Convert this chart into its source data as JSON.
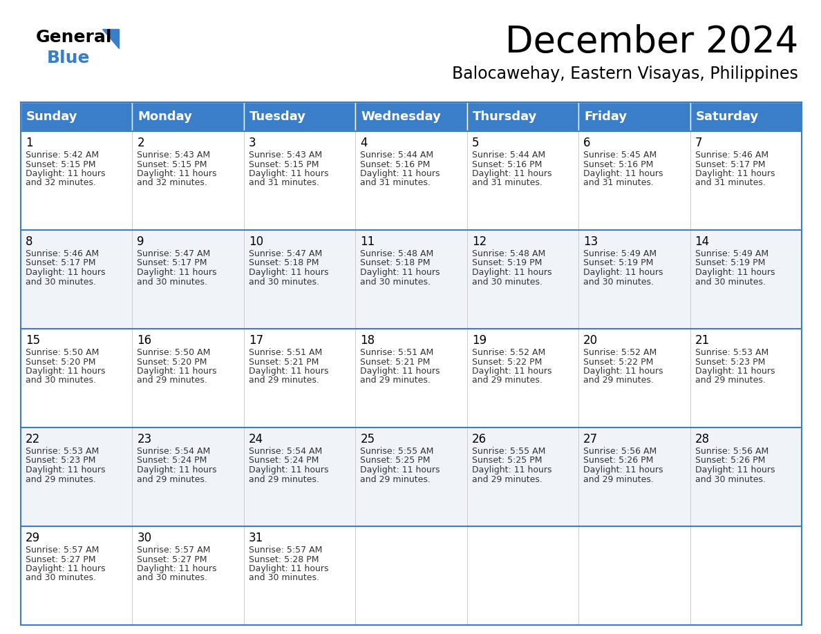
{
  "title": "December 2024",
  "subtitle": "Balocawehay, Eastern Visayas, Philippines",
  "header_color": "#3A7DC9",
  "header_text_color": "#FFFFFF",
  "cell_bg_alt": "#F0F4F8",
  "cell_bg_norm": "#FFFFFF",
  "text_color": "#333333",
  "day_names": [
    "Sunday",
    "Monday",
    "Tuesday",
    "Wednesday",
    "Thursday",
    "Friday",
    "Saturday"
  ],
  "title_fontsize": 38,
  "subtitle_fontsize": 17,
  "header_fontsize": 13,
  "day_num_fontsize": 12,
  "cell_fontsize": 9,
  "days": [
    {
      "day": 1,
      "col": 0,
      "row": 0,
      "sunrise": "5:42 AM",
      "sunset": "5:15 PM",
      "dl1": "Daylight: 11 hours",
      "dl2": "and 32 minutes."
    },
    {
      "day": 2,
      "col": 1,
      "row": 0,
      "sunrise": "5:43 AM",
      "sunset": "5:15 PM",
      "dl1": "Daylight: 11 hours",
      "dl2": "and 32 minutes."
    },
    {
      "day": 3,
      "col": 2,
      "row": 0,
      "sunrise": "5:43 AM",
      "sunset": "5:15 PM",
      "dl1": "Daylight: 11 hours",
      "dl2": "and 31 minutes."
    },
    {
      "day": 4,
      "col": 3,
      "row": 0,
      "sunrise": "5:44 AM",
      "sunset": "5:16 PM",
      "dl1": "Daylight: 11 hours",
      "dl2": "and 31 minutes."
    },
    {
      "day": 5,
      "col": 4,
      "row": 0,
      "sunrise": "5:44 AM",
      "sunset": "5:16 PM",
      "dl1": "Daylight: 11 hours",
      "dl2": "and 31 minutes."
    },
    {
      "day": 6,
      "col": 5,
      "row": 0,
      "sunrise": "5:45 AM",
      "sunset": "5:16 PM",
      "dl1": "Daylight: 11 hours",
      "dl2": "and 31 minutes."
    },
    {
      "day": 7,
      "col": 6,
      "row": 0,
      "sunrise": "5:46 AM",
      "sunset": "5:17 PM",
      "dl1": "Daylight: 11 hours",
      "dl2": "and 31 minutes."
    },
    {
      "day": 8,
      "col": 0,
      "row": 1,
      "sunrise": "5:46 AM",
      "sunset": "5:17 PM",
      "dl1": "Daylight: 11 hours",
      "dl2": "and 30 minutes."
    },
    {
      "day": 9,
      "col": 1,
      "row": 1,
      "sunrise": "5:47 AM",
      "sunset": "5:17 PM",
      "dl1": "Daylight: 11 hours",
      "dl2": "and 30 minutes."
    },
    {
      "day": 10,
      "col": 2,
      "row": 1,
      "sunrise": "5:47 AM",
      "sunset": "5:18 PM",
      "dl1": "Daylight: 11 hours",
      "dl2": "and 30 minutes."
    },
    {
      "day": 11,
      "col": 3,
      "row": 1,
      "sunrise": "5:48 AM",
      "sunset": "5:18 PM",
      "dl1": "Daylight: 11 hours",
      "dl2": "and 30 minutes."
    },
    {
      "day": 12,
      "col": 4,
      "row": 1,
      "sunrise": "5:48 AM",
      "sunset": "5:19 PM",
      "dl1": "Daylight: 11 hours",
      "dl2": "and 30 minutes."
    },
    {
      "day": 13,
      "col": 5,
      "row": 1,
      "sunrise": "5:49 AM",
      "sunset": "5:19 PM",
      "dl1": "Daylight: 11 hours",
      "dl2": "and 30 minutes."
    },
    {
      "day": 14,
      "col": 6,
      "row": 1,
      "sunrise": "5:49 AM",
      "sunset": "5:19 PM",
      "dl1": "Daylight: 11 hours",
      "dl2": "and 30 minutes."
    },
    {
      "day": 15,
      "col": 0,
      "row": 2,
      "sunrise": "5:50 AM",
      "sunset": "5:20 PM",
      "dl1": "Daylight: 11 hours",
      "dl2": "and 30 minutes."
    },
    {
      "day": 16,
      "col": 1,
      "row": 2,
      "sunrise": "5:50 AM",
      "sunset": "5:20 PM",
      "dl1": "Daylight: 11 hours",
      "dl2": "and 29 minutes."
    },
    {
      "day": 17,
      "col": 2,
      "row": 2,
      "sunrise": "5:51 AM",
      "sunset": "5:21 PM",
      "dl1": "Daylight: 11 hours",
      "dl2": "and 29 minutes."
    },
    {
      "day": 18,
      "col": 3,
      "row": 2,
      "sunrise": "5:51 AM",
      "sunset": "5:21 PM",
      "dl1": "Daylight: 11 hours",
      "dl2": "and 29 minutes."
    },
    {
      "day": 19,
      "col": 4,
      "row": 2,
      "sunrise": "5:52 AM",
      "sunset": "5:22 PM",
      "dl1": "Daylight: 11 hours",
      "dl2": "and 29 minutes."
    },
    {
      "day": 20,
      "col": 5,
      "row": 2,
      "sunrise": "5:52 AM",
      "sunset": "5:22 PM",
      "dl1": "Daylight: 11 hours",
      "dl2": "and 29 minutes."
    },
    {
      "day": 21,
      "col": 6,
      "row": 2,
      "sunrise": "5:53 AM",
      "sunset": "5:23 PM",
      "dl1": "Daylight: 11 hours",
      "dl2": "and 29 minutes."
    },
    {
      "day": 22,
      "col": 0,
      "row": 3,
      "sunrise": "5:53 AM",
      "sunset": "5:23 PM",
      "dl1": "Daylight: 11 hours",
      "dl2": "and 29 minutes."
    },
    {
      "day": 23,
      "col": 1,
      "row": 3,
      "sunrise": "5:54 AM",
      "sunset": "5:24 PM",
      "dl1": "Daylight: 11 hours",
      "dl2": "and 29 minutes."
    },
    {
      "day": 24,
      "col": 2,
      "row": 3,
      "sunrise": "5:54 AM",
      "sunset": "5:24 PM",
      "dl1": "Daylight: 11 hours",
      "dl2": "and 29 minutes."
    },
    {
      "day": 25,
      "col": 3,
      "row": 3,
      "sunrise": "5:55 AM",
      "sunset": "5:25 PM",
      "dl1": "Daylight: 11 hours",
      "dl2": "and 29 minutes."
    },
    {
      "day": 26,
      "col": 4,
      "row": 3,
      "sunrise": "5:55 AM",
      "sunset": "5:25 PM",
      "dl1": "Daylight: 11 hours",
      "dl2": "and 29 minutes."
    },
    {
      "day": 27,
      "col": 5,
      "row": 3,
      "sunrise": "5:56 AM",
      "sunset": "5:26 PM",
      "dl1": "Daylight: 11 hours",
      "dl2": "and 29 minutes."
    },
    {
      "day": 28,
      "col": 6,
      "row": 3,
      "sunrise": "5:56 AM",
      "sunset": "5:26 PM",
      "dl1": "Daylight: 11 hours",
      "dl2": "and 30 minutes."
    },
    {
      "day": 29,
      "col": 0,
      "row": 4,
      "sunrise": "5:57 AM",
      "sunset": "5:27 PM",
      "dl1": "Daylight: 11 hours",
      "dl2": "and 30 minutes."
    },
    {
      "day": 30,
      "col": 1,
      "row": 4,
      "sunrise": "5:57 AM",
      "sunset": "5:27 PM",
      "dl1": "Daylight: 11 hours",
      "dl2": "and 30 minutes."
    },
    {
      "day": 31,
      "col": 2,
      "row": 4,
      "sunrise": "5:57 AM",
      "sunset": "5:28 PM",
      "dl1": "Daylight: 11 hours",
      "dl2": "and 30 minutes."
    }
  ]
}
